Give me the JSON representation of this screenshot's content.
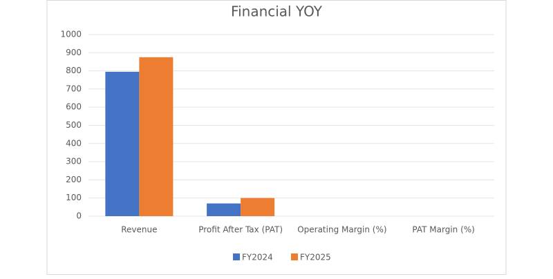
{
  "chart_data": {
    "type": "bar",
    "title": "Financial YOY",
    "categories": [
      "Revenue",
      "Profit After Tax (PAT)",
      "Operating Margin (%)",
      "PAT Margin (%)"
    ],
    "series": [
      {
        "name": "FY2024",
        "color": "#4472c4",
        "values": [
          795,
          70,
          0,
          0
        ]
      },
      {
        "name": "FY2025",
        "color": "#ed7d31",
        "values": [
          875,
          100,
          0,
          0
        ]
      }
    ],
    "ylim": [
      0,
      1000
    ],
    "yticks": [
      0,
      100,
      200,
      300,
      400,
      500,
      600,
      700,
      800,
      900,
      1000
    ],
    "grid": true,
    "legend": "bottom"
  }
}
